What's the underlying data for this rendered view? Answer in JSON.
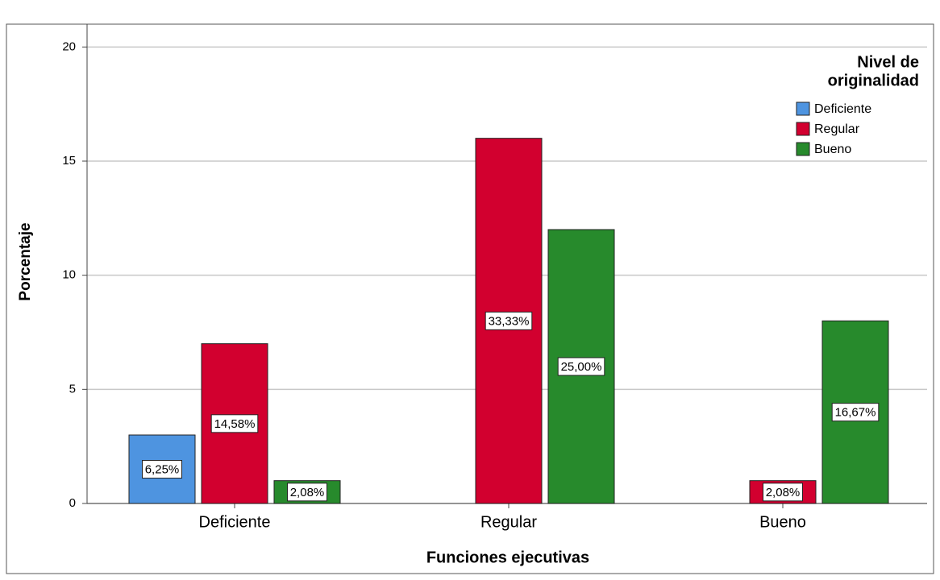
{
  "chart_data": {
    "type": "bar",
    "xlabel": "Funciones ejecutivas",
    "ylabel": "Porcentaje",
    "categories": [
      "Deficiente",
      "Regular",
      "Bueno"
    ],
    "legend_title": [
      "Nivel de",
      "originalidad"
    ],
    "legend": "upper right",
    "grid": true,
    "ylim": [
      0,
      21
    ],
    "yticks": [
      0,
      5,
      10,
      15,
      20
    ],
    "series": [
      {
        "name": "Deficiente",
        "color": "#4e94e0",
        "values": [
          3,
          null,
          null
        ],
        "labels": [
          "6,25%",
          null,
          null
        ]
      },
      {
        "name": "Regular",
        "color": "#d2002f",
        "values": [
          7,
          16,
          1
        ],
        "labels": [
          "14,58%",
          "33,33%",
          "2,08%"
        ]
      },
      {
        "name": "Bueno",
        "color": "#278a2c",
        "values": [
          1,
          12,
          8
        ],
        "labels": [
          "2,08%",
          "25,00%",
          "16,67%"
        ]
      }
    ]
  }
}
